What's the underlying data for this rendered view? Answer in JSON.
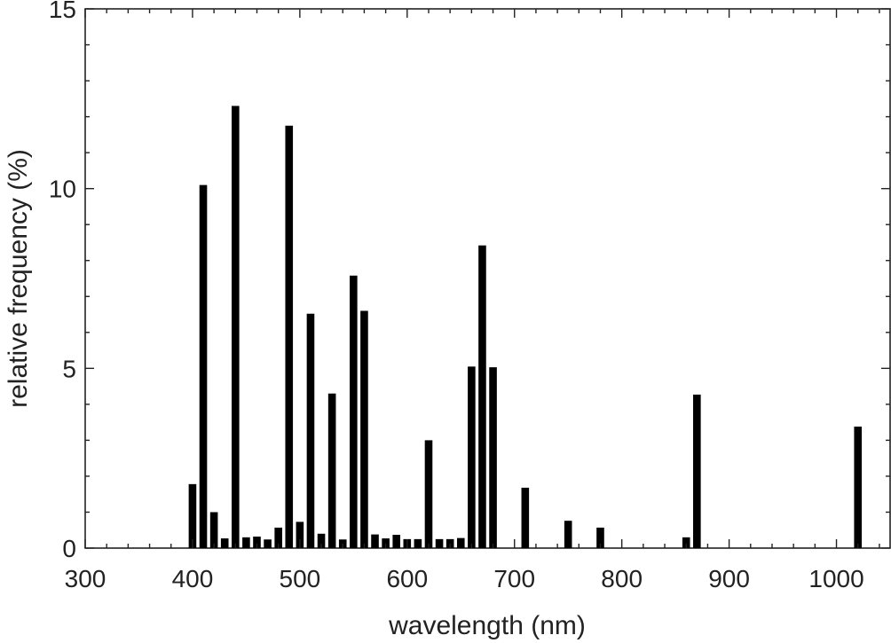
{
  "chart_data": {
    "type": "bar",
    "xlabel": "wavelength (nm)",
    "ylabel": "relative frequency (%)",
    "xlim": [
      300,
      1050
    ],
    "ylim": [
      0,
      15
    ],
    "xticks": [
      300,
      400,
      500,
      600,
      700,
      800,
      900,
      1000
    ],
    "xtick_labels": [
      "300",
      "400",
      "500",
      "600",
      "700",
      "800",
      "900",
      "1000"
    ],
    "yticks": [
      0,
      5,
      10,
      15
    ],
    "ytick_labels": [
      "0",
      "5",
      "10",
      "15"
    ],
    "x_minor_step": 20,
    "y_minor_step": 1,
    "grid": false,
    "bar_color": "#000000",
    "x": [
      400,
      410,
      420,
      430,
      440,
      450,
      460,
      470,
      480,
      490,
      500,
      510,
      520,
      530,
      540,
      550,
      560,
      570,
      580,
      590,
      600,
      610,
      620,
      630,
      640,
      650,
      660,
      670,
      680,
      710,
      750,
      780,
      860,
      870,
      1020
    ],
    "values": [
      1.78,
      10.1,
      1.0,
      0.27,
      12.3,
      0.3,
      0.32,
      0.24,
      0.57,
      11.75,
      0.73,
      6.52,
      0.4,
      4.3,
      0.24,
      7.58,
      6.6,
      0.38,
      0.27,
      0.37,
      0.25,
      0.25,
      3.0,
      0.25,
      0.25,
      0.28,
      5.05,
      8.42,
      5.03,
      1.68,
      0.76,
      0.57,
      0.3,
      4.27,
      3.38
    ]
  }
}
